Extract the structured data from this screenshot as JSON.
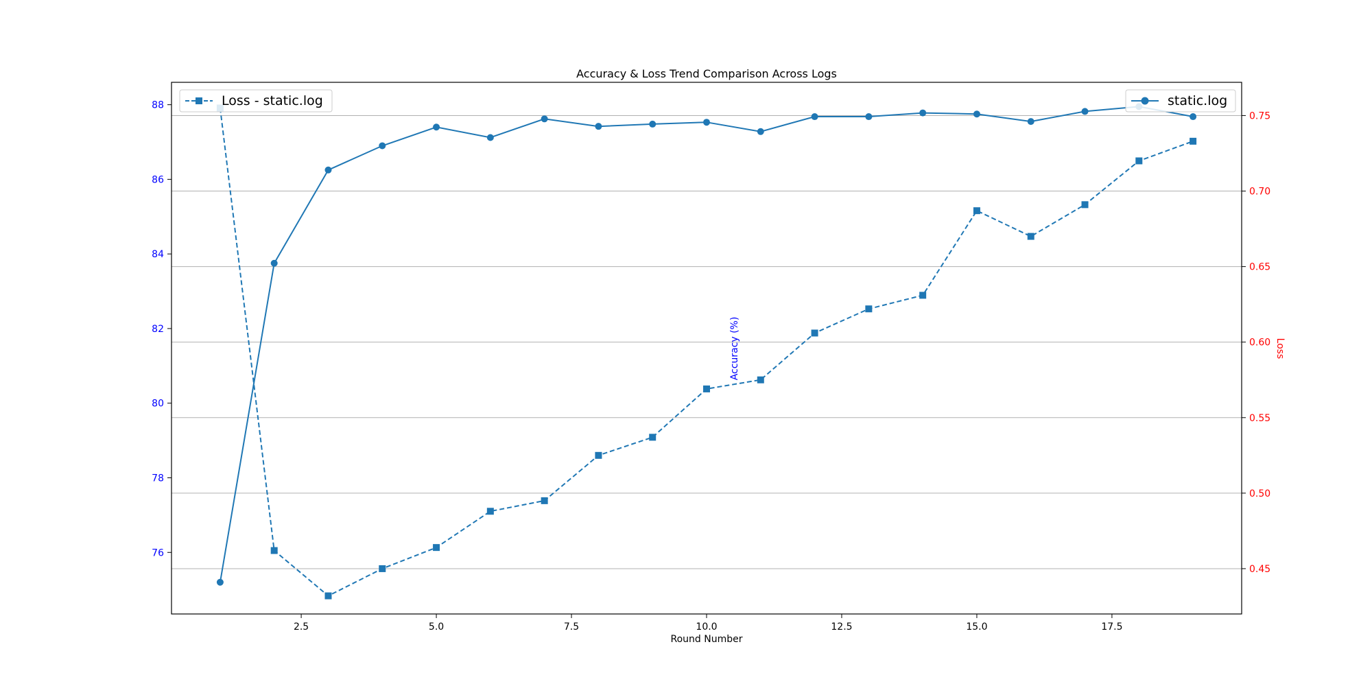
{
  "chart_data": {
    "type": "line",
    "title": "Accuracy & Loss Trend Comparison Across Logs",
    "xlabel": "Round Number",
    "ylabel_left": "Accuracy (%)",
    "ylabel_right": "Loss",
    "xlim": [
      0.1,
      19.9
    ],
    "ylim_left": [
      74.35,
      88.6
    ],
    "ylim_right": [
      0.42,
      0.772
    ],
    "x_ticks": [
      2.5,
      5.0,
      7.5,
      10.0,
      12.5,
      15.0,
      17.5
    ],
    "x_tick_labels": [
      "2.5",
      "5.0",
      "7.5",
      "10.0",
      "12.5",
      "15.0",
      "17.5"
    ],
    "y_left_ticks": [
      76,
      78,
      80,
      82,
      84,
      86,
      88
    ],
    "y_left_tick_labels": [
      "76",
      "78",
      "80",
      "82",
      "84",
      "86",
      "88"
    ],
    "y_right_ticks": [
      0.45,
      0.5,
      0.55,
      0.6,
      0.65,
      0.7,
      0.75
    ],
    "y_right_tick_labels": [
      "0.45",
      "0.50",
      "0.55",
      "0.60",
      "0.65",
      "0.70",
      "0.75"
    ],
    "grid": "horizontal (right axis)",
    "colors": {
      "series": "#1f77b4",
      "left_axis": "#0000ff",
      "right_axis": "#ff0000",
      "grid": "#b0b0b0",
      "text": "#000000"
    },
    "x": [
      1,
      2,
      3,
      4,
      5,
      6,
      7,
      8,
      9,
      10,
      11,
      12,
      13,
      14,
      15,
      16,
      17,
      18,
      19
    ],
    "series": [
      {
        "name": "static.log",
        "axis": "left",
        "style": "solid",
        "marker": "circle",
        "legend_position": "top-right",
        "values": [
          75.2,
          83.75,
          86.25,
          86.9,
          87.4,
          87.12,
          87.62,
          87.42,
          87.48,
          87.53,
          87.28,
          87.68,
          87.68,
          87.78,
          87.75,
          87.55,
          87.82,
          87.95,
          87.68
        ]
      },
      {
        "name": "Loss - static.log",
        "axis": "right",
        "style": "dashed",
        "marker": "square",
        "legend_position": "top-left",
        "values": [
          0.755,
          0.462,
          0.432,
          0.45,
          0.464,
          0.488,
          0.495,
          0.525,
          0.537,
          0.569,
          0.575,
          0.606,
          0.622,
          0.631,
          0.687,
          0.67,
          0.691,
          0.72,
          0.733
        ]
      }
    ]
  }
}
